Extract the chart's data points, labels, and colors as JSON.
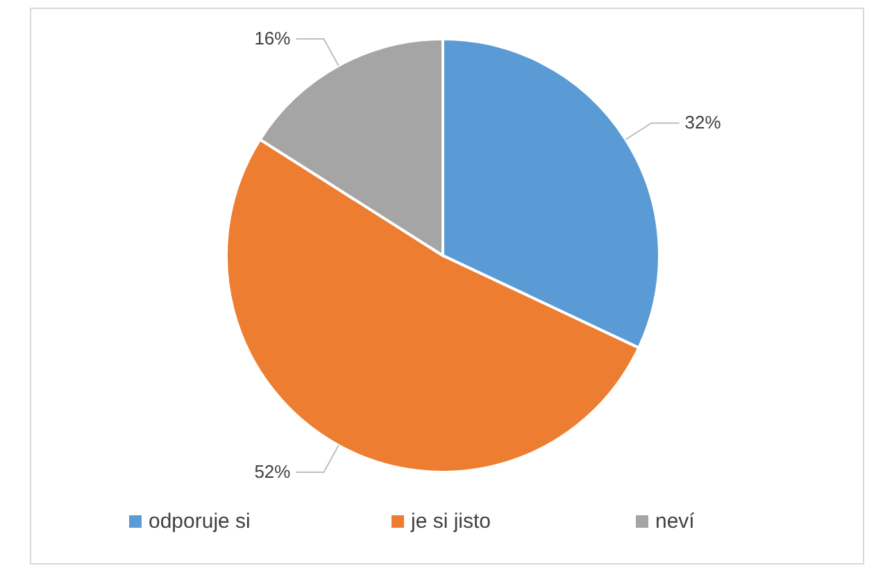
{
  "chart_data": {
    "type": "pie",
    "categories": [
      "odporuje si",
      "je si jisto",
      "neví"
    ],
    "values": [
      32,
      52,
      16
    ],
    "colors": [
      "#5b9bd5",
      "#ed7d31",
      "#a5a5a5"
    ],
    "value_labels": [
      "32%",
      "52%",
      "16%"
    ],
    "legend": "bottom"
  }
}
